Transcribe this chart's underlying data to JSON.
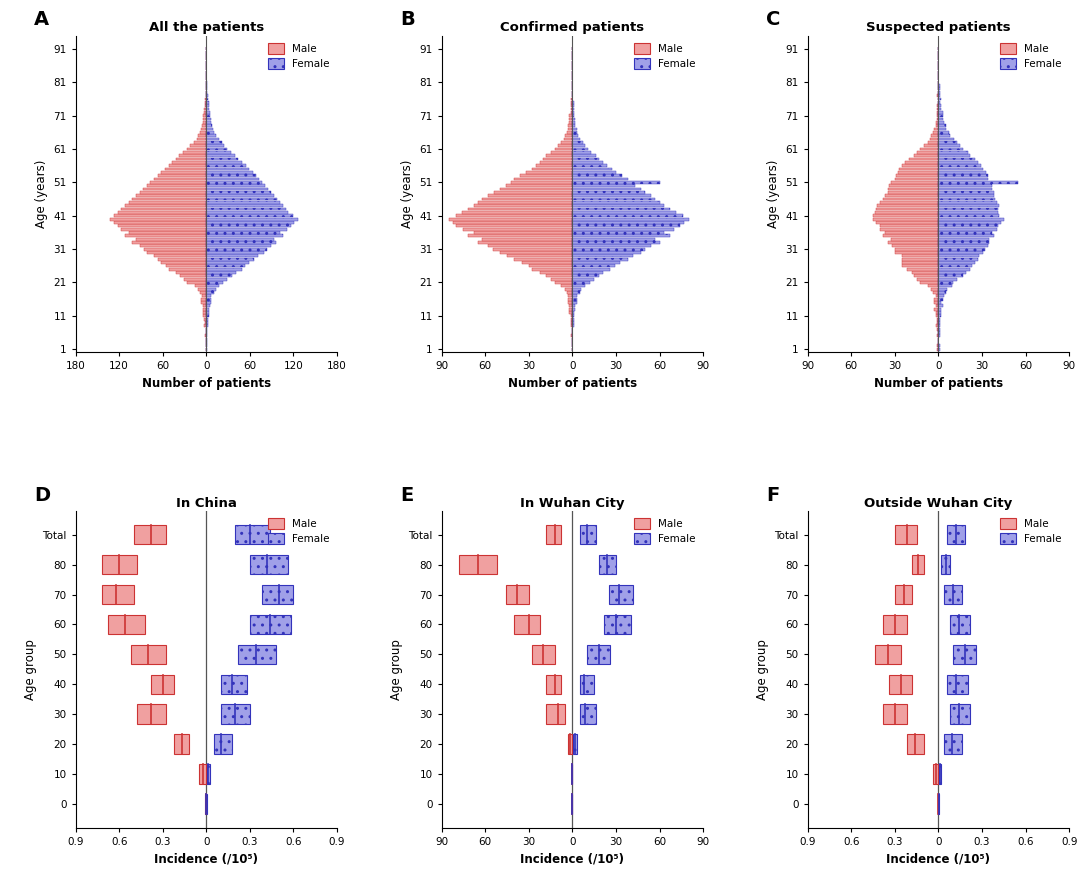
{
  "panel_A_title": "All the patients",
  "panel_B_title": "Confirmed patients",
  "panel_C_title": "Suspected patients",
  "panel_D_title": "In China",
  "panel_E_title": "In Wuhan City",
  "panel_F_title": "Outside Wuhan City",
  "xlabel_top": "Number of patients",
  "xlabel_bottom": "Incidence (/10⁵)",
  "ylabel_top": "Age (years)",
  "ylabel_bottom": "Age group",
  "male_color": "#F0A0A0",
  "female_color": "#A0A0E8",
  "male_edge": "#CC3333",
  "female_edge": "#3333BB",
  "centerline_color": "#555555",
  "ages": [
    1,
    2,
    3,
    4,
    5,
    6,
    7,
    8,
    9,
    10,
    11,
    12,
    13,
    14,
    15,
    16,
    17,
    18,
    19,
    20,
    21,
    22,
    23,
    24,
    25,
    26,
    27,
    28,
    29,
    30,
    31,
    32,
    33,
    34,
    35,
    36,
    37,
    38,
    39,
    40,
    41,
    42,
    43,
    44,
    45,
    46,
    47,
    48,
    49,
    50,
    51,
    52,
    53,
    54,
    55,
    56,
    57,
    58,
    59,
    60,
    61,
    62,
    63,
    64,
    65,
    66,
    67,
    68,
    69,
    70,
    71,
    72,
    73,
    74,
    75,
    76,
    77,
    78,
    79,
    80,
    81,
    82,
    83,
    84,
    85,
    86,
    87,
    88,
    89,
    90,
    91
  ],
  "A_male": [
    1,
    1,
    1,
    1,
    2,
    1,
    1,
    3,
    2,
    3,
    4,
    5,
    5,
    5,
    7,
    7,
    6,
    9,
    11,
    16,
    26,
    31,
    36,
    42,
    52,
    56,
    62,
    66,
    72,
    82,
    86,
    92,
    102,
    97,
    112,
    107,
    117,
    122,
    127,
    132,
    127,
    122,
    117,
    112,
    107,
    102,
    97,
    92,
    87,
    82,
    77,
    72,
    67,
    62,
    57,
    52,
    47,
    42,
    37,
    32,
    27,
    22,
    17,
    13,
    11,
    9,
    7,
    6,
    5,
    4,
    4,
    3,
    3,
    2,
    2,
    2,
    1,
    1,
    1,
    1,
    1,
    0,
    0,
    0,
    0,
    0,
    0,
    0,
    0,
    0,
    0
  ],
  "A_female": [
    1,
    1,
    1,
    1,
    1,
    1,
    1,
    2,
    2,
    2,
    3,
    4,
    4,
    5,
    6,
    6,
    7,
    10,
    13,
    18,
    23,
    28,
    36,
    41,
    49,
    53,
    59,
    66,
    71,
    79,
    83,
    89,
    96,
    93,
    106,
    101,
    111,
    116,
    121,
    126,
    119,
    113,
    109,
    106,
    101,
    97,
    93,
    89,
    85,
    81,
    76,
    73,
    69,
    64,
    59,
    54,
    49,
    44,
    39,
    34,
    29,
    25,
    21,
    17,
    13,
    11,
    9,
    8,
    7,
    6,
    5,
    5,
    4,
    3,
    3,
    2,
    2,
    1,
    1,
    1,
    1,
    0,
    0,
    0,
    0,
    0,
    0,
    0,
    0,
    0,
    0
  ],
  "B_male": [
    0,
    0,
    0,
    0,
    1,
    0,
    0,
    1,
    1,
    1,
    1,
    2,
    2,
    2,
    3,
    3,
    3,
    4,
    5,
    8,
    12,
    15,
    18,
    22,
    28,
    30,
    35,
    40,
    45,
    50,
    55,
    58,
    65,
    62,
    72,
    68,
    75,
    80,
    82,
    85,
    80,
    76,
    72,
    68,
    65,
    62,
    58,
    54,
    50,
    46,
    42,
    40,
    36,
    32,
    28,
    25,
    22,
    20,
    18,
    15,
    12,
    10,
    8,
    6,
    5,
    4,
    3,
    3,
    2,
    2,
    2,
    1,
    1,
    1,
    1,
    1,
    0,
    0,
    0,
    0,
    0,
    0,
    0,
    0,
    0,
    0,
    0,
    0,
    0,
    0,
    0
  ],
  "B_female": [
    0,
    0,
    0,
    0,
    0,
    0,
    0,
    1,
    1,
    1,
    1,
    1,
    2,
    2,
    3,
    3,
    3,
    5,
    6,
    9,
    12,
    15,
    18,
    21,
    26,
    29,
    33,
    38,
    42,
    47,
    50,
    54,
    60,
    57,
    67,
    63,
    70,
    74,
    77,
    80,
    76,
    71,
    67,
    63,
    60,
    57,
    54,
    50,
    47,
    43,
    60,
    38,
    34,
    30,
    27,
    24,
    21,
    18,
    16,
    13,
    11,
    9,
    7,
    5,
    4,
    3,
    3,
    2,
    2,
    2,
    1,
    1,
    1,
    1,
    1,
    0,
    0,
    0,
    0,
    0,
    0,
    0,
    0,
    0,
    0,
    0,
    0,
    0,
    0,
    0,
    0
  ],
  "C_male": [
    1,
    1,
    0,
    0,
    1,
    0,
    1,
    2,
    1,
    1,
    2,
    2,
    3,
    2,
    3,
    3,
    2,
    4,
    5,
    7,
    13,
    15,
    17,
    18,
    22,
    25,
    25,
    25,
    25,
    30,
    30,
    32,
    35,
    33,
    38,
    37,
    40,
    40,
    43,
    45,
    45,
    44,
    43,
    42,
    40,
    38,
    37,
    35,
    35,
    34,
    33,
    30,
    29,
    28,
    27,
    25,
    23,
    20,
    17,
    15,
    13,
    10,
    7,
    6,
    5,
    4,
    3,
    2,
    2,
    1,
    1,
    1,
    1,
    1,
    0,
    0,
    1,
    0,
    0,
    0,
    0,
    0,
    0,
    0,
    0,
    0,
    0,
    0,
    0,
    0,
    0
  ],
  "C_female": [
    1,
    1,
    0,
    0,
    1,
    1,
    1,
    1,
    1,
    1,
    2,
    2,
    2,
    3,
    2,
    3,
    4,
    5,
    6,
    9,
    10,
    13,
    17,
    19,
    22,
    23,
    25,
    27,
    28,
    31,
    32,
    34,
    35,
    35,
    38,
    37,
    40,
    41,
    43,
    45,
    42,
    41,
    41,
    42,
    40,
    39,
    38,
    38,
    37,
    37,
    55,
    34,
    34,
    33,
    31,
    29,
    27,
    25,
    22,
    20,
    17,
    15,
    13,
    11,
    8,
    7,
    5,
    5,
    4,
    3,
    3,
    3,
    2,
    2,
    1,
    2,
    1,
    1,
    1,
    1,
    0,
    0,
    0,
    0,
    0,
    0,
    0,
    0,
    0,
    0,
    0
  ],
  "age_groups_bottom": [
    "0",
    "10",
    "20",
    "30",
    "40",
    "50",
    "60",
    "70",
    "80",
    "Total"
  ],
  "D_male_lo": [
    0.0,
    0.005,
    0.12,
    0.28,
    0.22,
    0.28,
    0.42,
    0.5,
    0.48,
    0.28
  ],
  "D_male_hi": [
    0.01,
    0.05,
    0.22,
    0.48,
    0.38,
    0.52,
    0.68,
    0.72,
    0.72,
    0.5
  ],
  "D_male_med": [
    0.003,
    0.02,
    0.17,
    0.38,
    0.3,
    0.4,
    0.56,
    0.62,
    0.6,
    0.38
  ],
  "D_fem_lo": [
    0.0,
    0.004,
    0.05,
    0.1,
    0.1,
    0.22,
    0.3,
    0.38,
    0.3,
    0.2
  ],
  "D_fem_hi": [
    0.005,
    0.025,
    0.18,
    0.3,
    0.28,
    0.48,
    0.58,
    0.6,
    0.56,
    0.44
  ],
  "D_fem_med": [
    0.001,
    0.012,
    0.1,
    0.2,
    0.18,
    0.34,
    0.44,
    0.5,
    0.42,
    0.3
  ],
  "E_male_lo": [
    0.0,
    0.0,
    0.5,
    5.0,
    8.0,
    12.0,
    22.0,
    30.0,
    52.0,
    8.0
  ],
  "E_male_hi": [
    0.0,
    0.0,
    3.0,
    18.0,
    18.0,
    28.0,
    40.0,
    46.0,
    78.0,
    18.0
  ],
  "E_male_med": [
    0.0,
    0.0,
    1.5,
    10.0,
    12.0,
    20.0,
    30.0,
    38.0,
    65.0,
    12.0
  ],
  "E_fem_lo": [
    0.0,
    0.0,
    0.5,
    5.0,
    5.0,
    10.0,
    22.0,
    25.0,
    18.0,
    5.0
  ],
  "E_fem_hi": [
    0.0,
    0.0,
    3.5,
    16.0,
    15.0,
    26.0,
    40.0,
    42.0,
    30.0,
    16.0
  ],
  "E_fem_med": [
    0.0,
    0.0,
    2.0,
    9.0,
    8.0,
    18.0,
    30.0,
    32.0,
    24.0,
    10.0
  ],
  "F_male_lo": [
    0.0,
    0.005,
    0.1,
    0.22,
    0.18,
    0.26,
    0.22,
    0.18,
    0.1,
    0.15
  ],
  "F_male_hi": [
    0.005,
    0.04,
    0.22,
    0.38,
    0.34,
    0.44,
    0.38,
    0.3,
    0.18,
    0.3
  ],
  "F_male_med": [
    0.001,
    0.018,
    0.16,
    0.3,
    0.26,
    0.35,
    0.3,
    0.24,
    0.14,
    0.22
  ],
  "F_fem_lo": [
    0.0,
    0.003,
    0.04,
    0.08,
    0.06,
    0.1,
    0.08,
    0.04,
    0.02,
    0.06
  ],
  "F_fem_hi": [
    0.003,
    0.02,
    0.16,
    0.22,
    0.2,
    0.26,
    0.22,
    0.16,
    0.08,
    0.18
  ],
  "F_fem_med": [
    0.001,
    0.01,
    0.09,
    0.14,
    0.12,
    0.18,
    0.14,
    0.1,
    0.05,
    0.12
  ]
}
